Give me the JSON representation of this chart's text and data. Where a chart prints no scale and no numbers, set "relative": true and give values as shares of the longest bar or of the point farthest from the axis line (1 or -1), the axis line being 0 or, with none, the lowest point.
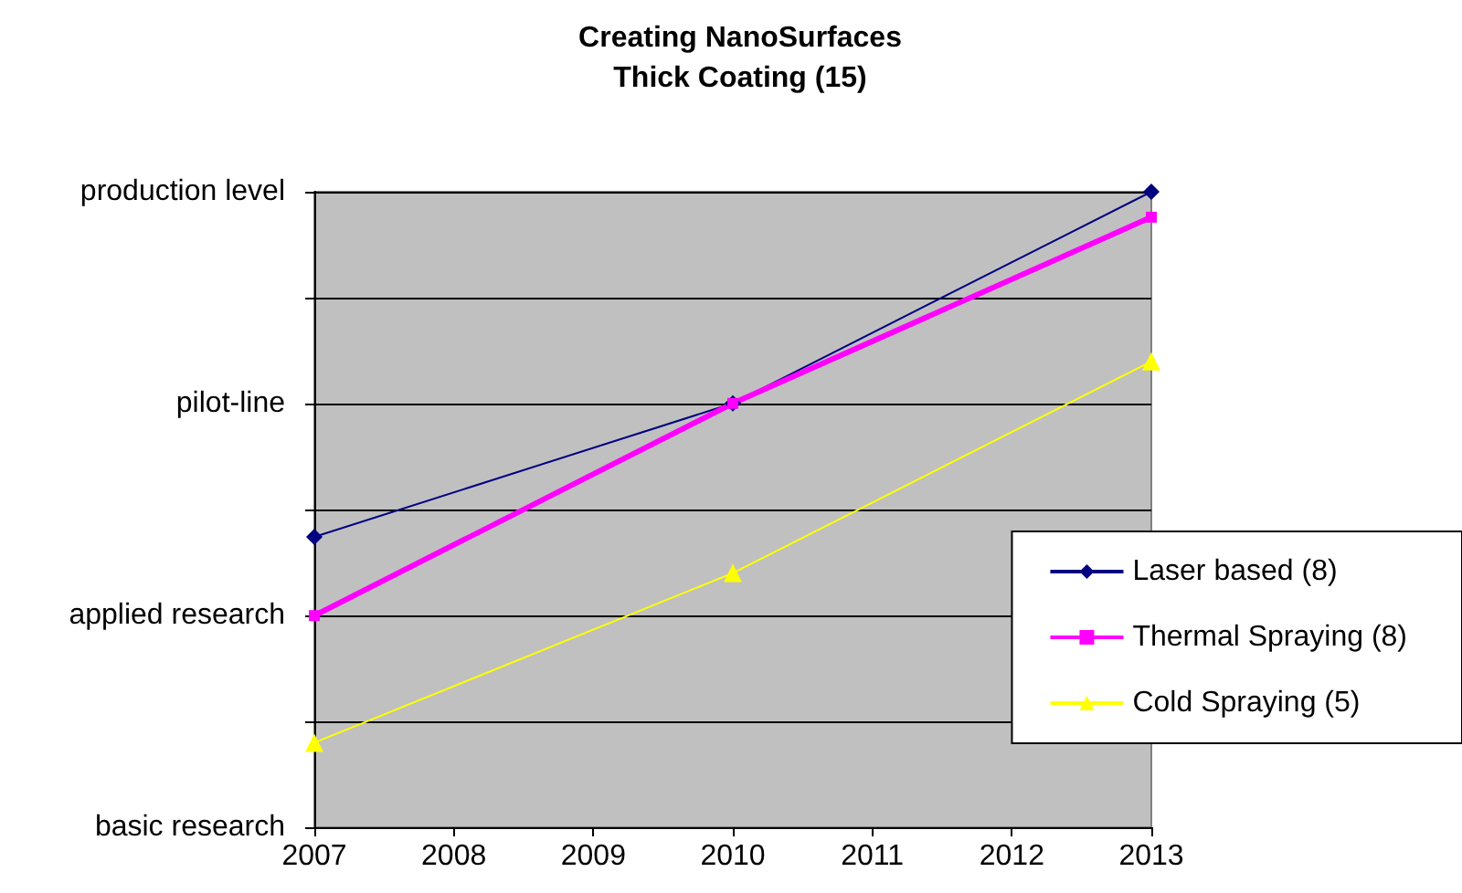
{
  "chart_data": {
    "type": "line",
    "title": "Creating NanoSurfaces",
    "subtitle": "Thick Coating (15)",
    "relative": true,
    "x": [
      2007,
      2010,
      2013
    ],
    "series": [
      {
        "name": "Laser based (8)",
        "color": "#000080",
        "values": [
          0.457,
          0.667,
          1
        ],
        "marker": "diamond"
      },
      {
        "name": "Thermal Spraying (8)",
        "color": "#ff00ff",
        "values": [
          0.333,
          0.667,
          0.96
        ],
        "marker": "square"
      },
      {
        "name": "Cold Spraying (5)",
        "color": "#ffff00",
        "values": [
          0.133,
          0.4,
          0.733
        ],
        "marker": "triangle"
      }
    ],
    "xlim": [
      2007,
      2013
    ],
    "xticks": [
      2007,
      2008,
      2009,
      2010,
      2011,
      2012,
      2013
    ],
    "annotations": [
      "basic research",
      "applied research",
      "pilot-line",
      "production level"
    ],
    "grid": "y",
    "legend": "bottom right",
    "line_style": "solid"
  }
}
